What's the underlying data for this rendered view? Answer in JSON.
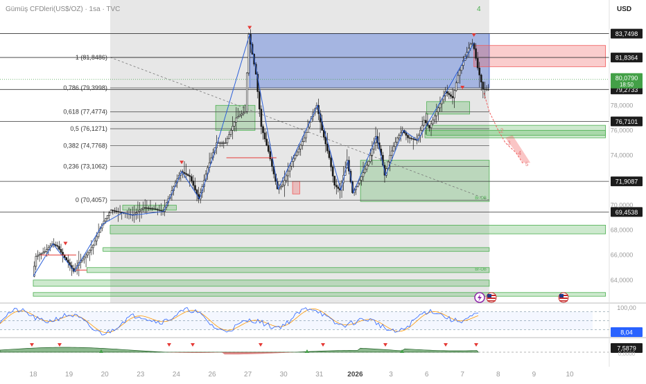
{
  "header": {
    "title": "Gümüş CFDleri(US$/OZ) · 1sa · TVC",
    "currency": "USD",
    "counter": "4"
  },
  "colors": {
    "candle": "#1a1a1a",
    "zigzag": "#2b5fd9",
    "fib_line": "#555555",
    "demand_zone": "#4caf50",
    "supply_zone": "#f05a5a",
    "blue_box": "#4a6fd8",
    "stoch_k": "#2962ff",
    "stoch_d": "#ff9800",
    "osc_fill": "#2e7d32",
    "osc_neg": "#c62828",
    "price_badge": "#43a047"
  },
  "chart_data": {
    "type": "candlestick",
    "title": "Gümüş CFDleri(US$/OZ) · 1sa · TVC",
    "y_axis": {
      "min": 62.6,
      "max": 86.0,
      "ticks": [
        "64,0000",
        "66,0000",
        "68,0000",
        "70,0000",
        "74,0000",
        "76,0000",
        "78,0000"
      ]
    },
    "x_axis": {
      "labels": [
        {
          "text": "18",
          "day": 0
        },
        {
          "text": "19",
          "day": 1
        },
        {
          "text": "20",
          "day": 2
        },
        {
          "text": "23",
          "day": 3
        },
        {
          "text": "24",
          "day": 4
        },
        {
          "text": "26",
          "day": 5
        },
        {
          "text": "27",
          "day": 6
        },
        {
          "text": "30",
          "day": 7
        },
        {
          "text": "31",
          "day": 8
        },
        {
          "text": "2026",
          "day": 9
        },
        {
          "text": "3",
          "day": 10
        },
        {
          "text": "6",
          "day": 11
        },
        {
          "text": "7",
          "day": 12
        },
        {
          "text": "8",
          "day": 13
        },
        {
          "text": "9",
          "day": 14
        },
        {
          "text": "10",
          "day": 15
        }
      ]
    },
    "price_path": [
      [
        0,
        64.3
      ],
      [
        0.1,
        65.9
      ],
      [
        0.35,
        66.3
      ],
      [
        0.55,
        66.9
      ],
      [
        0.7,
        66.7
      ],
      [
        0.85,
        66.0
      ],
      [
        1.0,
        65.4
      ],
      [
        1.15,
        64.7
      ],
      [
        1.3,
        65.4
      ],
      [
        1.5,
        66.0
      ],
      [
        1.7,
        66.8
      ],
      [
        1.95,
        68.5
      ],
      [
        2.2,
        69.6
      ],
      [
        2.5,
        69.4
      ],
      [
        2.8,
        69.2
      ],
      [
        3.1,
        69.8
      ],
      [
        3.4,
        69.7
      ],
      [
        3.65,
        69.5
      ],
      [
        3.75,
        70.2
      ],
      [
        4.0,
        71.8
      ],
      [
        4.15,
        72.7
      ],
      [
        4.4,
        72.3
      ],
      [
        4.65,
        70.5
      ],
      [
        4.9,
        73.0
      ],
      [
        5.15,
        75.0
      ],
      [
        5.4,
        75.0
      ],
      [
        5.7,
        77.0
      ],
      [
        5.95,
        77.5
      ],
      [
        6.05,
        83.7
      ],
      [
        6.25,
        80.5
      ],
      [
        6.4,
        76.3
      ],
      [
        6.6,
        74.3
      ],
      [
        6.85,
        71.3
      ],
      [
        7.0,
        71.6
      ],
      [
        7.25,
        73.5
      ],
      [
        7.45,
        74.5
      ],
      [
        7.6,
        75.4
      ],
      [
        7.8,
        77.1
      ],
      [
        7.95,
        78.0
      ],
      [
        8.1,
        76.0
      ],
      [
        8.3,
        73.8
      ],
      [
        8.45,
        71.6
      ],
      [
        8.6,
        71.2
      ],
      [
        8.8,
        73.6
      ],
      [
        8.95,
        71.0
      ],
      [
        9.15,
        72.0
      ],
      [
        9.4,
        73.5
      ],
      [
        9.6,
        75.5
      ],
      [
        9.75,
        74.0
      ],
      [
        9.85,
        72.4
      ],
      [
        10.0,
        74.0
      ],
      [
        10.2,
        75.4
      ],
      [
        10.35,
        76.0
      ],
      [
        10.5,
        75.4
      ],
      [
        10.75,
        75.2
      ],
      [
        10.95,
        76.8
      ],
      [
        11.1,
        76.2
      ],
      [
        11.35,
        77.8
      ],
      [
        11.55,
        79.1
      ],
      [
        11.75,
        78.6
      ],
      [
        11.9,
        80.4
      ],
      [
        12.05,
        81.6
      ],
      [
        12.25,
        82.9
      ],
      [
        12.32,
        83.0
      ],
      [
        12.45,
        81.0
      ],
      [
        12.6,
        79.3
      ],
      [
        12.75,
        79.27
      ]
    ],
    "zigzag": [
      [
        0,
        64.3
      ],
      [
        0.55,
        66.9
      ],
      [
        1.15,
        64.7
      ],
      [
        1.95,
        68.5
      ],
      [
        2.5,
        69.4
      ],
      [
        2.8,
        69.2
      ],
      [
        3.65,
        69.5
      ],
      [
        4.15,
        72.7
      ],
      [
        4.65,
        70.5
      ],
      [
        5.15,
        75.0
      ],
      [
        6.05,
        83.7
      ],
      [
        6.85,
        71.3
      ],
      [
        7.95,
        78.0
      ],
      [
        8.6,
        71.2
      ],
      [
        8.8,
        73.6
      ],
      [
        8.95,
        71.0
      ],
      [
        9.6,
        75.5
      ],
      [
        9.85,
        72.4
      ],
      [
        10.35,
        76.0
      ],
      [
        10.75,
        75.2
      ],
      [
        11.55,
        79.1
      ],
      [
        12.32,
        83.0
      ]
    ],
    "fib_levels": [
      {
        "label": "1 (81,8486)",
        "value": 81.8486
      },
      {
        "label": "0,786 (79,3998)",
        "value": 79.3998
      },
      {
        "label": "0,618 (77,4774)",
        "value": 77.4774
      },
      {
        "label": "0,5 (76,1271)",
        "value": 76.1271
      },
      {
        "label": "0,382 (74,7768)",
        "value": 74.7768
      },
      {
        "label": "0,236 (73,1062)",
        "value": 73.1062
      },
      {
        "label": "0 (70,4057)",
        "value": 70.4057
      }
    ],
    "horizontal_levels": [
      {
        "label": "83,7498",
        "value": 83.7498
      },
      {
        "label": "81,8364",
        "value": 81.8364
      },
      {
        "label": "79,2733",
        "value": 79.2733
      },
      {
        "label": "76,7101",
        "value": 76.7101
      },
      {
        "label": "71,9087",
        "value": 71.9087
      },
      {
        "label": "69,4538",
        "value": 69.4538
      }
    ],
    "current_price": {
      "value": 80.079,
      "label": "80,0790",
      "countdown": "18:50"
    },
    "demand_zones": [
      {
        "from": 9.15,
        "to": 12.75,
        "top": 73.6,
        "bottom": 70.3,
        "label": "Br-OB"
      },
      {
        "from": 11.0,
        "to": 16.0,
        "top": 76.4,
        "bottom": 75.6
      },
      {
        "from": 10.95,
        "to": 16.0,
        "top": 76.0,
        "bottom": 75.4
      },
      {
        "from": 11.0,
        "to": 12.2,
        "top": 78.3,
        "bottom": 77.3
      },
      {
        "from": 2.15,
        "to": 16.0,
        "top": 68.4,
        "bottom": 67.7
      },
      {
        "from": 1.95,
        "to": 12.75,
        "top": 66.6,
        "bottom": 66.3
      },
      {
        "from": 1.5,
        "to": 12.75,
        "top": 65.0,
        "bottom": 64.6,
        "label": "Br-OB"
      },
      {
        "from": 0,
        "to": 12.75,
        "top": 64.0,
        "bottom": 63.5
      },
      {
        "from": 0,
        "to": 16.0,
        "top": 63.0,
        "bottom": 62.7
      },
      {
        "from": 2.5,
        "to": 4.0,
        "top": 70.0,
        "bottom": 69.6
      },
      {
        "from": 5.1,
        "to": 6.2,
        "top": 78.0,
        "bottom": 76.0
      }
    ],
    "supply_zones": [
      {
        "from": 12.32,
        "to": 16.0,
        "top": 82.8,
        "bottom": 81.1
      },
      {
        "from": 7.25,
        "to": 7.45,
        "top": 71.9,
        "bottom": 70.9
      }
    ],
    "blue_box": {
      "from": 6.05,
      "to": 12.75,
      "top": 83.75,
      "bottom": 79.4
    },
    "gray_range": {
      "from": 2.15,
      "to": 12.75
    },
    "projection_labels": [
      "2",
      "3",
      "4",
      "5"
    ],
    "stochastic": {
      "value_label": "8,04",
      "top_label": "100,00"
    },
    "oscillator": {
      "value_label": "7,5879",
      "bottom_label": "0,0000"
    }
  }
}
